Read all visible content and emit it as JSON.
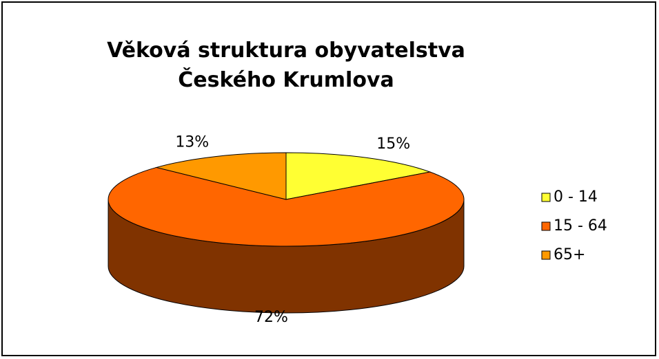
{
  "chart_data": {
    "type": "pie3d",
    "title": "Věková struktura obyvatelstva Českého Krumlova",
    "categories": [
      "0 - 14",
      "15 - 64",
      "65+"
    ],
    "values": [
      15,
      72,
      13
    ],
    "value_labels": [
      "15%",
      "72%",
      "13%"
    ],
    "colors": [
      "#ffff33",
      "#ff6600",
      "#ff9900"
    ],
    "legend": "right"
  }
}
